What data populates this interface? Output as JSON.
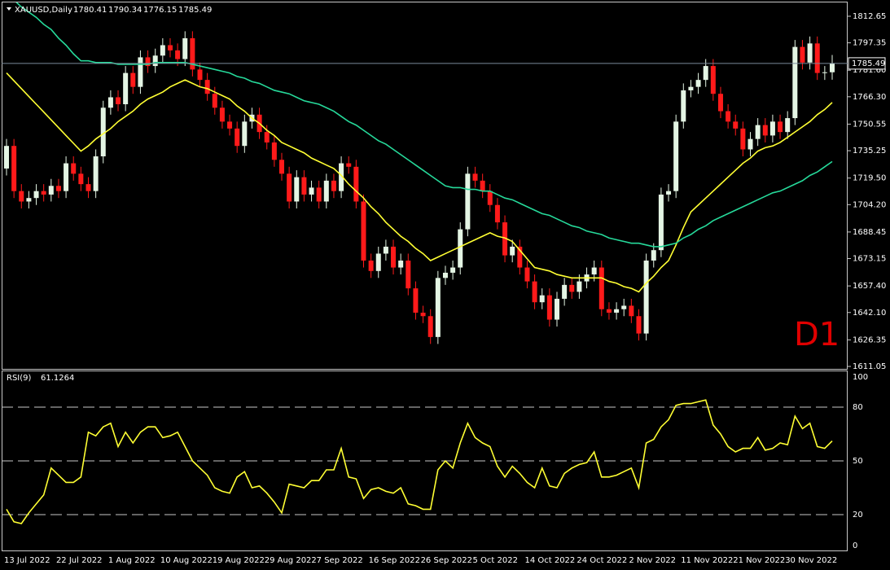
{
  "chart_data": [
    {
      "type": "candlestick",
      "symbol": "XAUUSD,Daily",
      "annotation": "D1",
      "annotation_color": "#e00000",
      "categories": [
        "13 Jul 2022",
        null,
        null,
        null,
        null,
        null,
        null,
        "22 Jul 2022",
        null,
        null,
        null,
        null,
        null,
        null,
        "1 Aug 2022",
        null,
        null,
        null,
        null,
        null,
        null,
        "10 Aug 2022",
        null,
        null,
        null,
        null,
        null,
        null,
        "19 Aug 2022",
        null,
        null,
        null,
        null,
        null,
        null,
        "29 Aug 2022",
        null,
        null,
        null,
        null,
        null,
        null,
        "7 Sep 2022",
        null,
        null,
        null,
        null,
        null,
        null,
        "16 Sep 2022",
        null,
        null,
        null,
        null,
        null,
        null,
        "26 Sep 2022",
        null,
        null,
        null,
        null,
        null,
        null,
        "5 Oct 2022",
        null,
        null,
        null,
        null,
        null,
        null,
        "14 Oct 2022",
        null,
        null,
        null,
        null,
        null,
        null,
        "24 Oct 2022",
        null,
        null,
        null,
        null,
        null,
        null,
        "2 Nov 2022",
        null,
        null,
        null,
        null,
        null,
        null,
        "11 Nov 2022",
        null,
        null,
        null,
        null,
        null,
        null,
        "21 Nov 2022",
        null,
        null,
        null,
        null,
        null,
        null,
        "30 Nov 2022",
        null,
        null,
        null,
        null,
        null,
        null
      ],
      "open": [
        1725,
        1738,
        1712,
        1706,
        1708,
        1712,
        1710,
        1715,
        1712,
        1728,
        1722,
        1716,
        1712,
        1732,
        1760,
        1766,
        1762,
        1780,
        1772,
        1789,
        1784,
        1790,
        1796,
        1793,
        1788,
        1800,
        1782,
        1776,
        1768,
        1760,
        1752,
        1748,
        1738,
        1752,
        1756,
        1746,
        1740,
        1730,
        1722,
        1706,
        1720,
        1710,
        1714,
        1706,
        1718,
        1712,
        1728,
        1726,
        1706,
        1672,
        1666,
        1676,
        1680,
        1668,
        1672,
        1656,
        1642,
        1640,
        1628,
        1662,
        1665,
        1668,
        1690,
        1722,
        1718,
        1712,
        1704,
        1694,
        1675,
        1680,
        1668,
        1660,
        1648,
        1652,
        1638,
        1650,
        1658,
        1654,
        1660,
        1664,
        1668,
        1644,
        1642,
        1644,
        1646,
        1640,
        1630,
        1672,
        1678,
        1710,
        1712,
        1752,
        1770,
        1772,
        1776,
        1784,
        1768,
        1758,
        1752,
        1748,
        1736,
        1742,
        1750,
        1744,
        1752,
        1746,
        1754,
        1795,
        1786,
        1797,
        1780,
        1780.41
      ],
      "high": [
        1742,
        1742,
        1716,
        1712,
        1716,
        1716,
        1719,
        1719,
        1732,
        1732,
        1726,
        1720,
        1736,
        1764,
        1770,
        1770,
        1784,
        1784,
        1793,
        1793,
        1794,
        1800,
        1800,
        1797,
        1804,
        1804,
        1786,
        1780,
        1772,
        1764,
        1756,
        1752,
        1756,
        1760,
        1760,
        1750,
        1744,
        1734,
        1726,
        1724,
        1724,
        1718,
        1718,
        1722,
        1722,
        1732,
        1732,
        1730,
        1710,
        1676,
        1680,
        1684,
        1684,
        1676,
        1676,
        1660,
        1646,
        1644,
        1666,
        1669,
        1672,
        1694,
        1726,
        1726,
        1722,
        1716,
        1708,
        1698,
        1684,
        1684,
        1672,
        1664,
        1656,
        1656,
        1654,
        1662,
        1662,
        1664,
        1668,
        1672,
        1672,
        1648,
        1648,
        1650,
        1650,
        1644,
        1676,
        1682,
        1714,
        1716,
        1756,
        1774,
        1776,
        1780,
        1788,
        1788,
        1772,
        1762,
        1756,
        1752,
        1746,
        1754,
        1754,
        1756,
        1756,
        1758,
        1799,
        1799,
        1801,
        1801,
        1784,
        1790.34
      ],
      "low": [
        1721,
        1708,
        1702,
        1702,
        1704,
        1706,
        1706,
        1708,
        1708,
        1718,
        1712,
        1708,
        1708,
        1728,
        1756,
        1758,
        1758,
        1768,
        1768,
        1780,
        1780,
        1786,
        1789,
        1784,
        1784,
        1778,
        1772,
        1764,
        1756,
        1748,
        1744,
        1734,
        1734,
        1748,
        1742,
        1736,
        1726,
        1718,
        1702,
        1702,
        1706,
        1706,
        1702,
        1702,
        1708,
        1708,
        1722,
        1702,
        1668,
        1662,
        1662,
        1672,
        1664,
        1664,
        1652,
        1638,
        1636,
        1624,
        1624,
        1658,
        1661,
        1664,
        1686,
        1714,
        1708,
        1700,
        1690,
        1671,
        1671,
        1664,
        1656,
        1644,
        1644,
        1634,
        1634,
        1646,
        1650,
        1650,
        1656,
        1660,
        1640,
        1638,
        1638,
        1640,
        1636,
        1626,
        1626,
        1668,
        1674,
        1706,
        1708,
        1748,
        1766,
        1768,
        1772,
        1764,
        1754,
        1748,
        1744,
        1732,
        1732,
        1738,
        1740,
        1740,
        1742,
        1742,
        1750,
        1782,
        1782,
        1776,
        1776,
        1776.15
      ],
      "close": [
        1738,
        1712,
        1706,
        1708,
        1712,
        1710,
        1715,
        1712,
        1728,
        1722,
        1716,
        1712,
        1732,
        1760,
        1766,
        1762,
        1780,
        1772,
        1789,
        1784,
        1790,
        1796,
        1793,
        1788,
        1800,
        1782,
        1776,
        1768,
        1760,
        1752,
        1748,
        1738,
        1752,
        1756,
        1746,
        1740,
        1730,
        1722,
        1706,
        1720,
        1710,
        1714,
        1706,
        1718,
        1712,
        1728,
        1726,
        1706,
        1672,
        1666,
        1676,
        1680,
        1668,
        1672,
        1656,
        1642,
        1640,
        1628,
        1662,
        1665,
        1668,
        1690,
        1722,
        1718,
        1712,
        1704,
        1694,
        1675,
        1680,
        1668,
        1660,
        1648,
        1652,
        1638,
        1650,
        1658,
        1654,
        1660,
        1664,
        1668,
        1644,
        1642,
        1644,
        1646,
        1640,
        1630,
        1672,
        1678,
        1710,
        1712,
        1752,
        1770,
        1772,
        1776,
        1784,
        1768,
        1758,
        1752,
        1748,
        1736,
        1742,
        1750,
        1744,
        1752,
        1746,
        1754,
        1795,
        1786,
        1797,
        1780,
        1780.41,
        1785.49
      ],
      "bull_color": "#e4f5e4",
      "bear_color": "#ff1a1a",
      "lines": [
        {
          "color": "#ffff33",
          "values": [
            1780,
            1775.5,
            1771,
            1766.5,
            1762,
            1757.5,
            1753,
            1748.5,
            1744,
            1739.5,
            1735,
            1738,
            1742,
            1745,
            1748,
            1752,
            1755,
            1758,
            1762,
            1765,
            1767,
            1769,
            1772,
            1774,
            1776,
            1774,
            1772,
            1771,
            1769,
            1767,
            1765,
            1761,
            1758,
            1754,
            1751,
            1747,
            1744,
            1740,
            1738,
            1736,
            1734,
            1731,
            1729,
            1727,
            1725,
            1721,
            1716,
            1712,
            1708,
            1703,
            1699,
            1694,
            1690,
            1686,
            1683,
            1679,
            1676,
            1672,
            1674,
            1676,
            1678,
            1680,
            1682,
            1684,
            1686,
            1688,
            1686,
            1685,
            1683,
            1678,
            1673,
            1668,
            1667,
            1666,
            1664,
            1663,
            1662,
            1662,
            1662,
            1662,
            1662,
            1660,
            1659,
            1657,
            1656,
            1654,
            1659,
            1663,
            1668,
            1672,
            1681,
            1691,
            1700,
            1704,
            1708,
            1712,
            1716,
            1720,
            1724,
            1728,
            1731,
            1735,
            1737,
            1738,
            1740,
            1743,
            1746,
            1749,
            1752,
            1756,
            1759,
            1763
          ]
        },
        {
          "color": "#26d99a",
          "values": [
            1825,
            1822,
            1818,
            1815,
            1812,
            1808,
            1805,
            1800,
            1796,
            1791,
            1787,
            1787,
            1786,
            1786,
            1786,
            1785,
            1785,
            1785,
            1785,
            1785,
            1786,
            1786,
            1786,
            1786,
            1786,
            1785,
            1784,
            1783,
            1782,
            1781,
            1780,
            1778,
            1777,
            1775,
            1774,
            1772,
            1770,
            1769,
            1768,
            1766,
            1764,
            1763,
            1762,
            1760,
            1758,
            1755,
            1752,
            1750,
            1747,
            1744,
            1741,
            1739,
            1736,
            1733,
            1730,
            1727,
            1724,
            1721,
            1718,
            1715,
            1714,
            1714,
            1713,
            1713,
            1712,
            1712,
            1710,
            1708,
            1707,
            1705,
            1703,
            1701,
            1699,
            1698,
            1696,
            1694,
            1692,
            1691,
            1689,
            1688,
            1687,
            1685,
            1684,
            1683,
            1682,
            1682,
            1681,
            1680,
            1680,
            1681,
            1682,
            1685,
            1687,
            1690,
            1692,
            1695,
            1697,
            1699,
            1701,
            1703,
            1705,
            1707,
            1709,
            1711,
            1712,
            1714,
            1716,
            1718,
            1721,
            1723,
            1726,
            1729
          ]
        }
      ],
      "ylim": [
        1609.65,
        1820.6
      ],
      "yticks": [
        1812.65,
        1797.35,
        {
          "value": 1781.6,
          "label": "1781.60"
        },
        {
          "value": 1766.3,
          "label": "1766.30"
        },
        1750.55,
        1735.25,
        {
          "value": 1719.5,
          "label": "1719.50"
        },
        {
          "value": 1704.2,
          "label": "1704.20"
        },
        1688.45,
        1673.15,
        {
          "value": 1657.4,
          "label": "1657.40"
        },
        {
          "value": 1642.1,
          "label": "1642.10"
        },
        1626.35,
        1611.05
      ]
    },
    {
      "type": "line",
      "label": "RSI(9)",
      "color": "#ffff33",
      "values": [
        23,
        16,
        15,
        21,
        26,
        31,
        46,
        42,
        38,
        38,
        41,
        66,
        64,
        69,
        71,
        58,
        66,
        60,
        66,
        69,
        69,
        63,
        64,
        66,
        58,
        50,
        46,
        42,
        35,
        33,
        32,
        41,
        44,
        35,
        36,
        32,
        27,
        21,
        37,
        36,
        35,
        39,
        39,
        45,
        45,
        57,
        41,
        40,
        29,
        34,
        35,
        33,
        32,
        35,
        26,
        25,
        23,
        23,
        45,
        50,
        46,
        60,
        71,
        63,
        60,
        58,
        47,
        41,
        47,
        43,
        38,
        35,
        46,
        36,
        35,
        43,
        46,
        48,
        49,
        55,
        41,
        41,
        42,
        44,
        46,
        35,
        60,
        62,
        69,
        73,
        81,
        82,
        82,
        83,
        84,
        70,
        65,
        58,
        55,
        57,
        57,
        63,
        56,
        57,
        60,
        59,
        75,
        68,
        71,
        58,
        57,
        61.1264
      ],
      "ylim": [
        0,
        100
      ],
      "yticks": [
        0,
        20,
        50,
        80,
        100
      ]
    }
  ]
}
